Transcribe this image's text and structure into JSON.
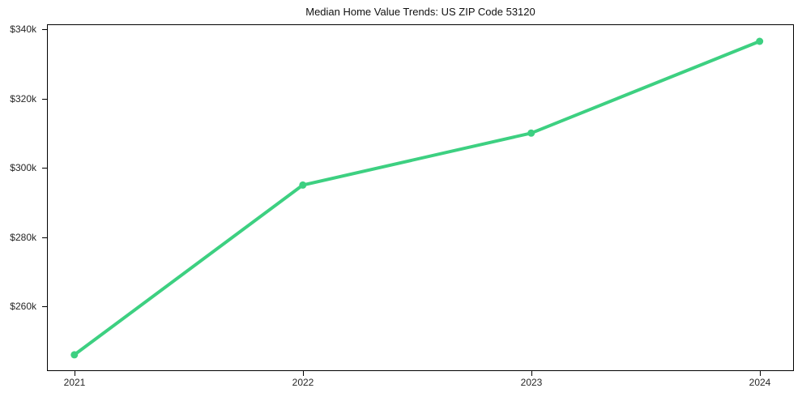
{
  "figure": {
    "background": "#ffffff"
  },
  "chart_data": {
    "type": "line",
    "title": "Median Home Value Trends: US ZIP Code 53120",
    "x": [
      2021,
      2022,
      2023,
      2024
    ],
    "values": [
      246000,
      295000,
      310000,
      336500
    ],
    "x_tick_labels": [
      "2021",
      "2022",
      "2023",
      "2024"
    ],
    "y_tick_values": [
      260000,
      280000,
      300000,
      320000,
      340000
    ],
    "y_tick_labels": [
      "$260k",
      "$280k",
      "$300k",
      "$320k",
      "$340k"
    ],
    "xlabel": "",
    "ylabel": "",
    "xlim": [
      2020.88,
      2024.15
    ],
    "ylim": [
      241300,
      341400
    ],
    "grid": false,
    "legend_position": "none",
    "marker": "circle",
    "line_color": "#3dd081",
    "line_width": 4,
    "marker_radius": 4.5,
    "axis_color": "#000000",
    "tick_label_color": "#262626",
    "title_color": "#111111"
  }
}
